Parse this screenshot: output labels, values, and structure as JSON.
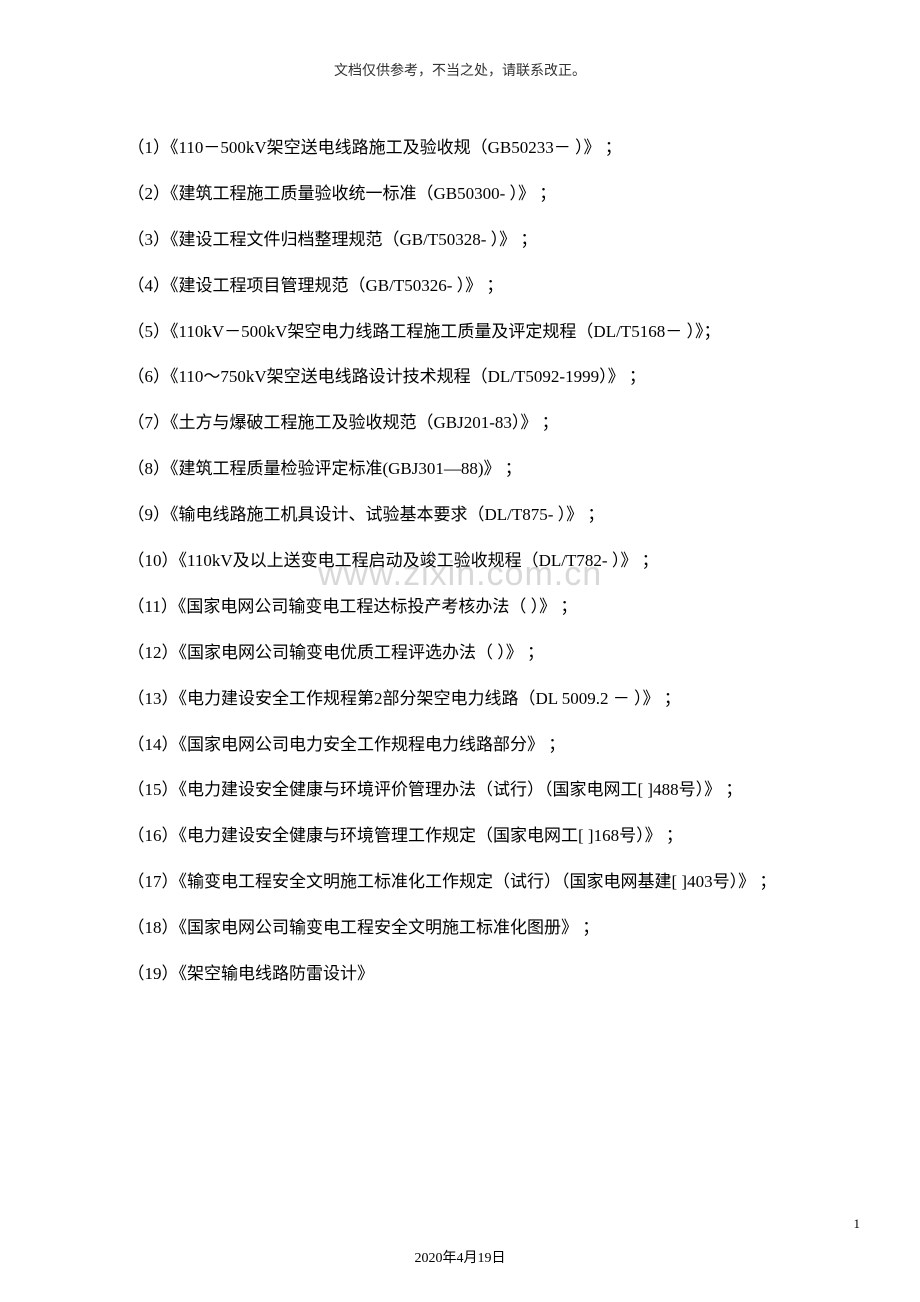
{
  "header": {
    "note": "文档仅供参考，不当之处，请联系改正。"
  },
  "watermark": {
    "text": "www.zixin.com.cn"
  },
  "items": [
    "（1）《110－500kV架空送电线路施工及验收规（GB50233－  ）》 ；",
    "（2）《建筑工程施工质量验收统一标准（GB50300-  ）》 ；",
    "（3）《建设工程文件归档整理规范（GB/T50328-  ）》 ；",
    "（4）《建设工程项目管理规范（GB/T50326-  ）》 ；",
    "（5）《110kV－500kV架空电力线路工程施工质量及评定规程（DL/T5168－  ）》；",
    "（6）《110～750kV架空送电线路设计技术规程（DL/T5092-1999）》 ；",
    "（7）《土方与爆破工程施工及验收规范（GBJ201-83）》 ；",
    "（8）《建筑工程质量检验评定标准(GBJ301—88)》 ；",
    "（9）《输电线路施工机具设计、试验基本要求（DL/T875-  ）》 ；",
    "（10）《110kV及以上送变电工程启动及竣工验收规程（DL/T782-  ）》 ；",
    "（11）《国家电网公司输变电工程达标投产考核办法（  ）》 ；",
    "（12）《国家电网公司输变电优质工程评选办法（  ）》 ；",
    "（13）《电力建设安全工作规程第2部分架空电力线路（DL      5009.2 －  ）》 ；",
    "（14）《国家电网公司电力安全工作规程电力线路部分》 ；",
    "（15）《电力建设安全健康与环境评价管理办法（试行）（国家电网工[ ]488号）》 ；",
    "（16）《电力建设安全健康与环境管理工作规定（国家电网工[ ]168号）》 ；",
    "（17）《输变电工程安全文明施工标准化工作规定（试行）（国家电网基建[ ]403号）》 ；",
    "（18）《国家电网公司输变电工程安全文明施工标准化图册》 ；",
    "（19）《架空输电线路防雷设计》"
  ],
  "footer": {
    "pageNumber": "1",
    "date": "2020年4月19日"
  },
  "styling": {
    "pageWidth": 920,
    "pageHeight": 1302,
    "backgroundColor": "#ffffff",
    "textColor": "#000000",
    "headerColor": "#333333",
    "watermarkColor": "#d8d8d8",
    "bodyFontSize": 17,
    "headerFontSize": 14,
    "watermarkFontSize": 34,
    "lineHeight": 2.7,
    "textIndent": "2.5em",
    "fontFamily": "SimSun"
  }
}
